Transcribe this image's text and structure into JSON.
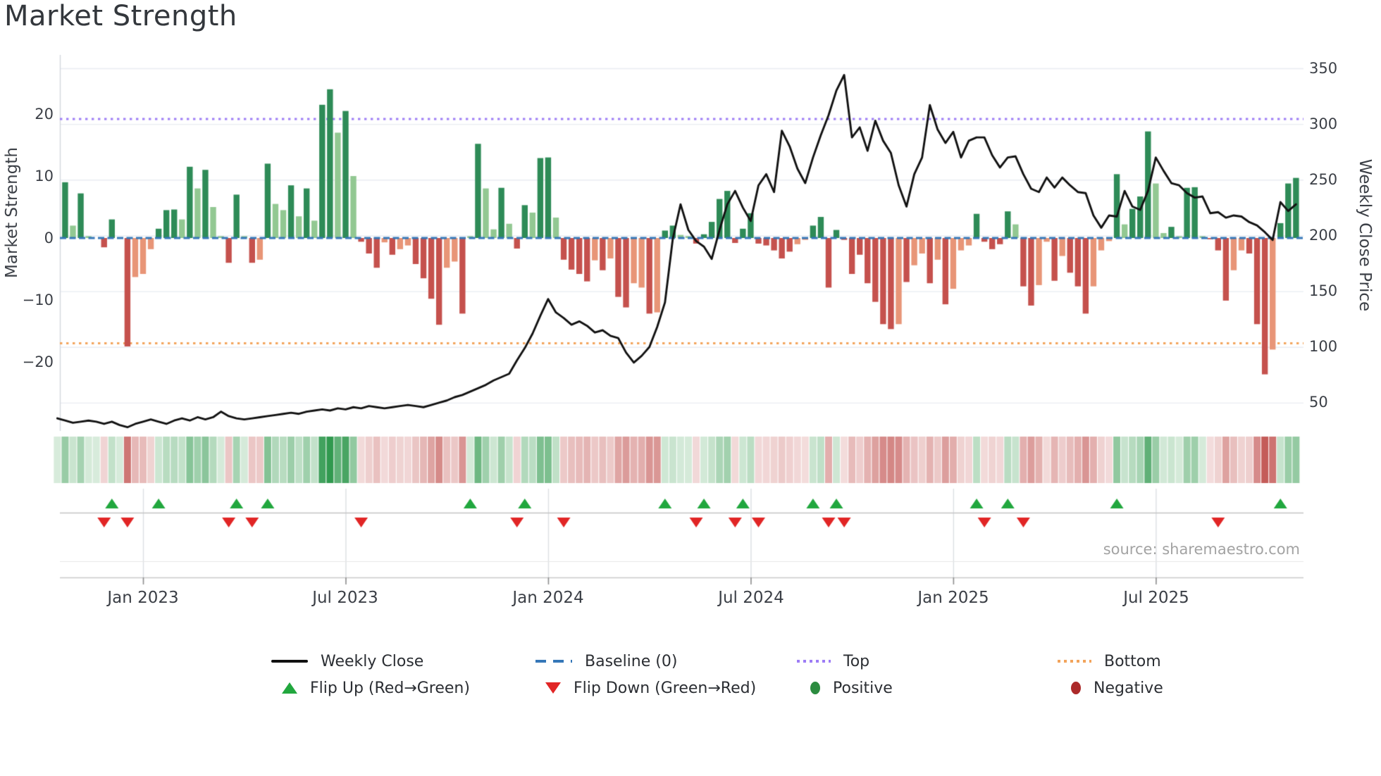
{
  "source": "source: sharemaestro.com",
  "chart_data": {
    "type": "bar+line combo with heatmap strip and flip markers",
    "title": "Market Strength",
    "weeks": 160,
    "left_axis": {
      "label": "Market Strength",
      "tick_labels": [
        "20",
        "10",
        "0",
        "−10",
        "−20"
      ],
      "ticks": [
        20,
        10,
        0,
        -10,
        -20
      ],
      "ylim": [
        -30.9,
        29.5
      ]
    },
    "right_axis": {
      "label": "Weekly Close Price",
      "tick_labels": [
        "350",
        "300",
        "250",
        "200",
        "150",
        "100",
        "50"
      ],
      "ticks": [
        350,
        300,
        250,
        200,
        150,
        100,
        50
      ],
      "ylim": [
        25,
        365
      ]
    },
    "x_axis": {
      "tick_labels": [
        "Jan 2023",
        "Jul 2023",
        "Jan 2024",
        "Jul 2024",
        "Jan 2025",
        "Jul 2025"
      ],
      "tick_weeks": [
        11,
        37,
        63,
        89,
        115,
        141
      ]
    },
    "baseline": 0,
    "top_line": 19.2,
    "bottom_line": -17.0,
    "bar_values": [
      0,
      9,
      2,
      7.2,
      0.3,
      0,
      -1.5,
      3,
      0,
      -17.5,
      -6.3,
      -5.8,
      -1.8,
      1.5,
      4.5,
      4.6,
      3,
      11.5,
      8,
      11,
      5,
      0.3,
      -4,
      7,
      0.3,
      -4,
      -3.5,
      12,
      5.5,
      4.5,
      8.5,
      3.5,
      8,
      2.8,
      21.5,
      24,
      17,
      20.5,
      10,
      -0.6,
      -2.5,
      -4.8,
      -0.7,
      -2.7,
      -1.8,
      -1.2,
      -4.2,
      -6.5,
      -9.8,
      -14,
      -4.8,
      -3.8,
      -12.2,
      0.3,
      15.2,
      8,
      1.4,
      8.1,
      2.3,
      -1.7,
      5.3,
      4.1,
      12.9,
      13,
      3.3,
      -3.5,
      -5.1,
      -5.8,
      -7,
      -3.6,
      -5.2,
      -3.3,
      -9.5,
      -11.2,
      -7.3,
      -8,
      -12.2,
      -12,
      1.2,
      2,
      0.5,
      0.3,
      -0.9,
      0.6,
      2.6,
      6.3,
      7.6,
      -0.8,
      1.5,
      4,
      -0.9,
      -1.2,
      -2,
      -3.3,
      -2.2,
      -1,
      -0.3,
      2,
      3.4,
      -8,
      1.3,
      -0.3,
      -5.8,
      -2.7,
      -7.3,
      -10.3,
      -13.9,
      -14.7,
      -13.9,
      -7.1,
      -4.4,
      -2.5,
      -7.3,
      -3.5,
      -10.7,
      -8.2,
      -2,
      -1.2,
      3.9,
      -0.6,
      -1.8,
      -1,
      4.3,
      2.2,
      -7.8,
      -10.9,
      -7.6,
      -0.6,
      -6.9,
      -2.9,
      -5.6,
      -7.8,
      -12.2,
      -7.8,
      -2,
      -0.5,
      10.3,
      2.2,
      4.7,
      6.7,
      17.2,
      8.8,
      0.8,
      1.8,
      0.3,
      8.1,
      8.2,
      0.3,
      -0.2,
      -2,
      -10.1,
      -5.2,
      -2,
      -2.5,
      -13.9,
      -22,
      -18,
      2.4,
      8.8,
      9.7
    ],
    "soft_weeks": [
      2,
      4,
      10,
      11,
      12,
      16,
      18,
      20,
      21,
      24,
      26,
      28,
      29,
      31,
      33,
      36,
      38,
      42,
      44,
      45,
      50,
      51,
      53,
      55,
      56,
      58,
      61,
      64,
      69,
      71,
      74,
      75,
      77,
      80,
      81,
      95,
      96,
      108,
      110,
      111,
      113,
      115,
      116,
      117,
      123,
      126,
      127,
      129,
      133,
      134,
      135,
      137,
      141,
      142,
      144,
      147,
      151,
      152,
      156
    ],
    "line_values": [
      36,
      34,
      32,
      33,
      34,
      33,
      31,
      33,
      30,
      28,
      31,
      33,
      35,
      33,
      31,
      34,
      36,
      34,
      37,
      35,
      37,
      42,
      38,
      36,
      35,
      36,
      37,
      38,
      39,
      40,
      41,
      40,
      42,
      43,
      44,
      43,
      45,
      44,
      46,
      45,
      47,
      46,
      45,
      46,
      47,
      48,
      47,
      46,
      48,
      50,
      52,
      55,
      57,
      60,
      63,
      66,
      70,
      73,
      76,
      88,
      99,
      112,
      128,
      143,
      131,
      126,
      120,
      123,
      119,
      113,
      115,
      110,
      108,
      95,
      86,
      92,
      100,
      118,
      140,
      197,
      228,
      205,
      195,
      190,
      179,
      205,
      228,
      240,
      225,
      213,
      245,
      255,
      239,
      294,
      280,
      260,
      247,
      270,
      290,
      308,
      330,
      344,
      288,
      297,
      276,
      303,
      285,
      274,
      245,
      226,
      255,
      270,
      317,
      295,
      283,
      293,
      270,
      285,
      288,
      288,
      272,
      261,
      270,
      271,
      255,
      242,
      239,
      252,
      243,
      252,
      245,
      239,
      238,
      218,
      207,
      218,
      217,
      240,
      226,
      223,
      240,
      270,
      258,
      247,
      245,
      238,
      234,
      235,
      220,
      221,
      216,
      218,
      217,
      212,
      209,
      203,
      196,
      230,
      222,
      228
    ],
    "flip_up_weeks": [
      7,
      13,
      23,
      27,
      53,
      60,
      78,
      83,
      88,
      97,
      100,
      118,
      122,
      136,
      157
    ],
    "flip_down_weeks": [
      6,
      9,
      22,
      25,
      39,
      59,
      65,
      82,
      87,
      90,
      99,
      101,
      119,
      124,
      149
    ],
    "legend": {
      "items": [
        {
          "label": "Weekly Close"
        },
        {
          "label": "Baseline (0)"
        },
        {
          "label": "Top"
        },
        {
          "label": "Bottom"
        },
        {
          "label": "Flip Up (Red→Green)"
        },
        {
          "label": "Flip Down (Green→Red)"
        },
        {
          "label": "Positive"
        },
        {
          "label": "Negative"
        }
      ]
    },
    "colors": {
      "bar_positive": "#2e8b57",
      "bar_positive_soft": "#92c892",
      "bar_negative": "#c5514d",
      "bar_negative_soft": "#e89577",
      "price_line": "#111111",
      "baseline": "#3577b8",
      "top_line": "#9d7df5",
      "bottom_line": "#f2a45c",
      "flip_up": "#21a73e",
      "flip_down": "#e12525",
      "positive_dot": "#2c8c40",
      "negative_dot": "#ac2a2a",
      "grid": "#e9ecf2",
      "heat_pos_full": "#31994f",
      "heat_pos_base": "#e9f4ea",
      "heat_neg_full": "#c0504d",
      "heat_neg_base": "#f9eded"
    }
  }
}
